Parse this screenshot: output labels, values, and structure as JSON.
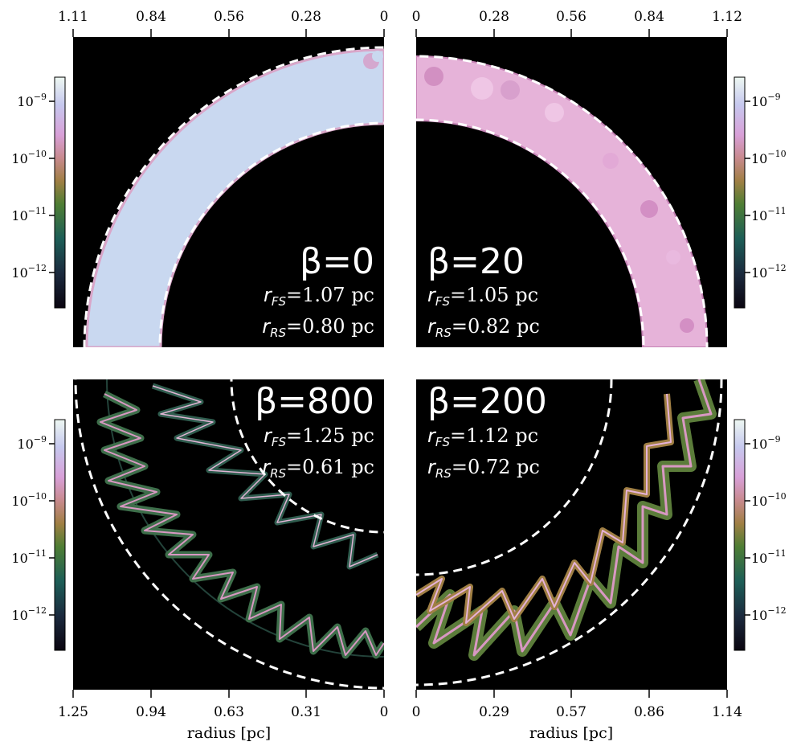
{
  "panels": [
    {
      "id": "top-left",
      "beta": "β=0",
      "r_fs": {
        "sym": "r",
        "sub": "FS",
        "val": "=1.07 pc"
      },
      "r_rs": {
        "sym": "r",
        "sub": "RS",
        "val": "=0.80 pc"
      },
      "xticks": [
        "1.11",
        "0.84",
        "0.56",
        "0.28",
        "0"
      ],
      "xticks_position": "top",
      "colormap": "pink-blue"
    },
    {
      "id": "top-right",
      "beta": "β=20",
      "r_fs": {
        "sym": "r",
        "sub": "FS",
        "val": "=1.05 pc"
      },
      "r_rs": {
        "sym": "r",
        "sub": "RS",
        "val": "=0.82 pc"
      },
      "xticks": [
        "0",
        "0.28",
        "0.56",
        "0.84",
        "1.12"
      ],
      "xticks_position": "top",
      "colormap": "pink-blue"
    },
    {
      "id": "bottom-left",
      "beta": "β=800",
      "r_fs": {
        "sym": "r",
        "sub": "FS",
        "val": "=1.25 pc"
      },
      "r_rs": {
        "sym": "r",
        "sub": "RS",
        "val": "=0.61 pc"
      },
      "xticks": [
        "1.25",
        "0.94",
        "0.63",
        "0.31",
        "0"
      ],
      "xticks_position": "bottom",
      "colormap": "cubehelix"
    },
    {
      "id": "bottom-right",
      "beta": "β=200",
      "r_fs": {
        "sym": "r",
        "sub": "FS",
        "val": "=1.12 pc"
      },
      "r_rs": {
        "sym": "r",
        "sub": "RS",
        "val": "=0.72 pc"
      },
      "xticks": [
        "0",
        "0.29",
        "0.57",
        "0.86",
        "1.14"
      ],
      "xticks_position": "bottom",
      "colormap": "cubehelix"
    }
  ],
  "xlabel": "radius [pc]",
  "colorbar_ticks": [
    {
      "base": "10",
      "exp": "−9"
    },
    {
      "base": "10",
      "exp": "−10"
    },
    {
      "base": "10",
      "exp": "−11"
    },
    {
      "base": "10",
      "exp": "−12"
    }
  ],
  "colors": {
    "background": "#000000",
    "shock_line": "#ffffff",
    "shell_low_beta": "#c9d8f0",
    "shell_low_beta_edge": "#d9a6c9",
    "filament_green": "#3d6e4a",
    "filament_pink": "#d898c2"
  }
}
